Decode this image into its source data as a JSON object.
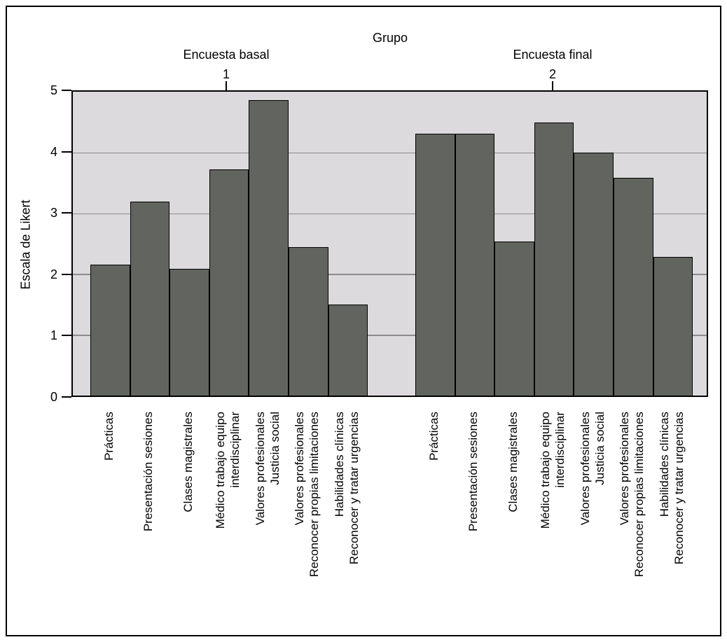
{
  "chart_data": {
    "type": "bar",
    "title": "Grupo",
    "ylabel": "Escala de Likert",
    "xlabel": "",
    "ylim": [
      0,
      5
    ],
    "yticks": [
      0,
      1,
      2,
      3,
      4,
      5
    ],
    "grid": true,
    "legend_position": "none",
    "categories": [
      [
        "Prácticas"
      ],
      [
        "Presentación sesiones"
      ],
      [
        "Clases magistrales"
      ],
      [
        "Médico trabajo equipo",
        "interdisciplinar"
      ],
      [
        "Valores profesionales",
        "Justicia social"
      ],
      [
        "Valores profesionales",
        "Reconocer propias limitaciones"
      ],
      [
        "Habilidades clínicas",
        "Reconocer y tratar urgencias"
      ]
    ],
    "series": [
      {
        "name": "Encuesta basal",
        "group_number": "1",
        "values": [
          2.16,
          3.19,
          2.09,
          3.72,
          4.86,
          2.44,
          1.5
        ]
      },
      {
        "name": "Encuesta final",
        "group_number": "2",
        "values": [
          4.31,
          4.31,
          2.53,
          4.49,
          4.0,
          3.58,
          2.28
        ]
      }
    ],
    "colors": {
      "bar_fill": "#626460",
      "bar_border": "#000000",
      "plot_background": "#dcdadc",
      "gridline": "#8c8c8c",
      "frame_border": "#000000"
    }
  }
}
